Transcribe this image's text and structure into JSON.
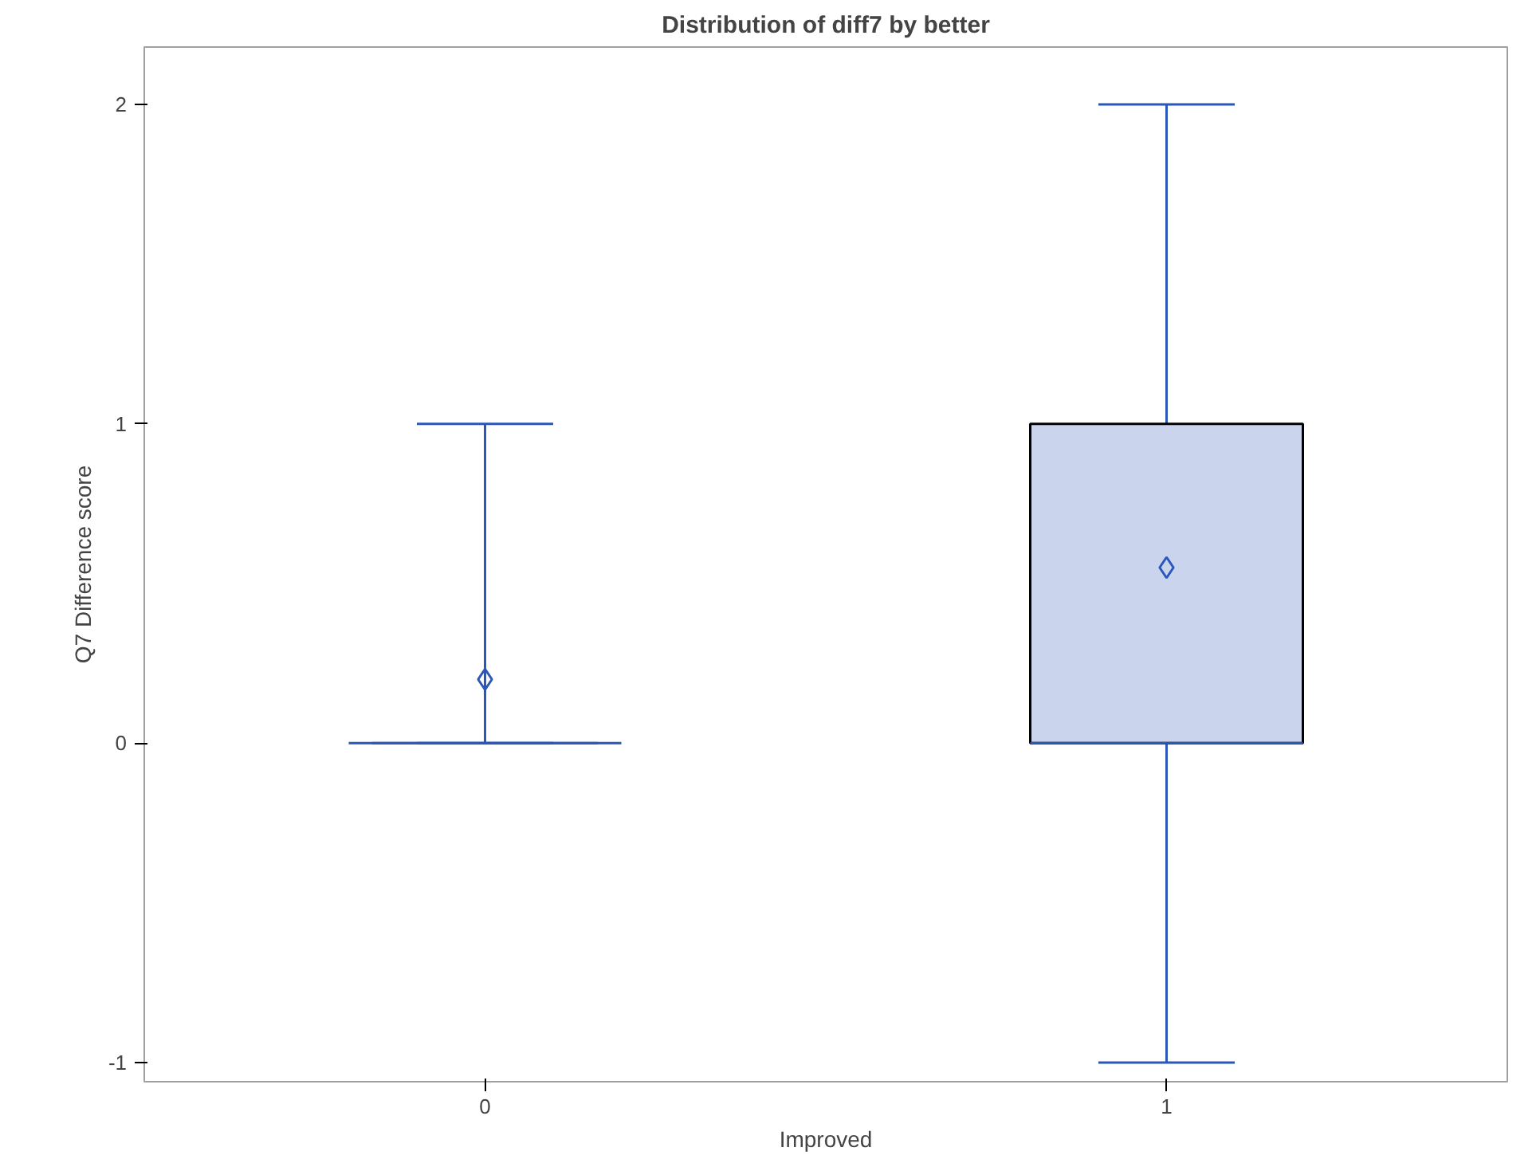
{
  "chart_data": {
    "type": "box",
    "title": "Distribution of diff7 by better",
    "xlabel": "Improved",
    "ylabel": "Q7 Difference score",
    "categories": [
      "0",
      "1"
    ],
    "series": [
      {
        "color": "#2a57b8",
        "boxes": [
          {
            "low": 0,
            "q1": 0,
            "median": 0,
            "q3": 0,
            "high": 1,
            "mean": 0.2
          },
          {
            "low": -1,
            "q1": 0,
            "median": 0,
            "q3": 1,
            "high": 2,
            "mean": 0.55
          }
        ]
      }
    ],
    "ylim": [
      -1.06,
      2.18
    ],
    "yticks": [
      -1,
      0,
      1,
      2
    ],
    "grid": false,
    "marker": "diamond"
  }
}
